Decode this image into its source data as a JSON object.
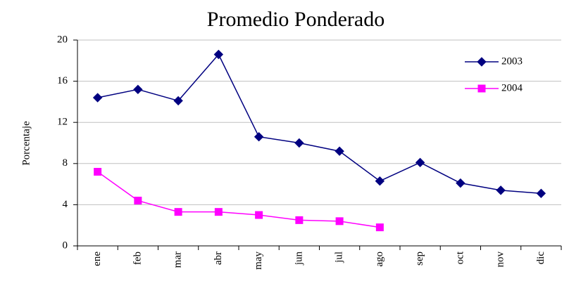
{
  "chart_data": {
    "type": "line",
    "title": "Promedio Ponderado",
    "y_label": "Porcentaje",
    "categories": [
      "ene",
      "feb",
      "mar",
      "abr",
      "may",
      "jun",
      "jul",
      "ago",
      "sep",
      "oct",
      "nov",
      "dic"
    ],
    "series": [
      {
        "name": "2003",
        "color": "#000080",
        "marker": "diamond",
        "values": [
          14.4,
          15.2,
          14.1,
          18.6,
          10.6,
          10.0,
          9.2,
          6.3,
          8.1,
          6.1,
          5.4,
          5.1
        ]
      },
      {
        "name": "2004",
        "color": "#ff00ff",
        "marker": "square",
        "values": [
          7.2,
          4.4,
          3.3,
          3.3,
          3.0,
          2.5,
          2.4,
          1.8,
          null,
          null,
          null,
          null
        ]
      }
    ],
    "ylim": [
      0,
      20
    ],
    "yticks": [
      0,
      4,
      8,
      12,
      16,
      20
    ],
    "grid": true,
    "legend": "top-right"
  }
}
